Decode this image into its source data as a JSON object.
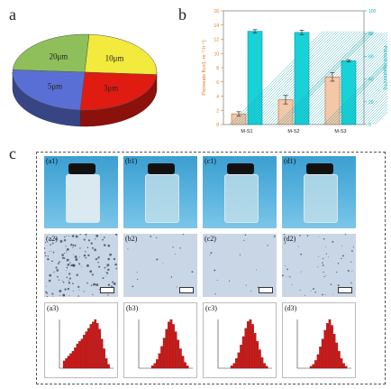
{
  "panels": {
    "a": "a",
    "b": "b",
    "c": "c"
  },
  "colors": {
    "pie_green": "#8fbf5a",
    "pie_yellow": "#f2ea3c",
    "pie_red": "#e01b12",
    "pie_blue": "#5a6fd6",
    "bar_orange": "#f4c7a8",
    "bar_cyan": "#19d2d8",
    "axis_left": "#e07b1c",
    "axis_right": "#16b8c4",
    "hist_red": "#d01818"
  },
  "pie": {
    "slices": [
      {
        "label": "20μm",
        "value": 25,
        "color": "#8fbf5a"
      },
      {
        "label": "10μm",
        "value": 25,
        "color": "#f2ea3c"
      },
      {
        "label": "3μm",
        "value": 25,
        "color": "#e01b12"
      },
      {
        "label": "5μm",
        "value": 25,
        "color": "#5a6fd6"
      }
    ]
  },
  "chart_data": {
    "type": "bar",
    "categories": [
      "M-S1",
      "M-S2",
      "M-S3"
    ],
    "series": [
      {
        "values": [
          1.5,
          3.5,
          6.7
        ],
        "errors": [
          0.3,
          0.6,
          0.6
        ],
        "axis": "left"
      },
      {
        "values": [
          82,
          81,
          56
        ],
        "errors": [
          1.5,
          2,
          1
        ],
        "axis": "right"
      }
    ],
    "ylabel_left": "Permeate flux(L·m⁻²·h⁻¹)",
    "ylabel_right": "Particle rejection(%)",
    "ylim_left": [
      0,
      16
    ],
    "ylim_right": [
      0,
      100
    ],
    "yticks_left": [
      "0",
      "2",
      "4",
      "6",
      "8",
      "10",
      "12",
      "14",
      "16"
    ],
    "yticks_right": [
      "0",
      "20",
      "40",
      "60",
      "80",
      "100"
    ]
  },
  "panel_c": {
    "vials": [
      "(a1)",
      "(b1)",
      "(c1)",
      "(d1)"
    ],
    "micros": [
      "(a2)",
      "(b2)",
      "(c2)",
      "(d2)"
    ],
    "hists": [
      "(a3)",
      "(b3)",
      "(c3)",
      "(d3)"
    ],
    "hist_levels": [
      [
        0.15,
        0.2,
        0.25,
        0.3,
        0.35,
        0.42,
        0.5,
        0.55,
        0.6,
        0.68,
        0.75,
        0.82,
        0.9,
        0.95,
        1.0,
        0.92,
        0.8,
        0.6,
        0.4,
        0.2,
        0.08
      ],
      [
        0.05,
        0.1,
        0.18,
        0.3,
        0.45,
        0.62,
        0.8,
        0.95,
        1.0,
        0.9,
        0.75,
        0.58,
        0.4,
        0.25,
        0.12,
        0.05
      ],
      [
        0.05,
        0.1,
        0.2,
        0.32,
        0.48,
        0.65,
        0.82,
        0.96,
        1.0,
        0.9,
        0.72,
        0.55,
        0.38,
        0.22,
        0.1,
        0.04
      ],
      [
        0.04,
        0.08,
        0.16,
        0.28,
        0.44,
        0.6,
        0.78,
        0.92,
        1.0,
        0.88,
        0.7,
        0.52,
        0.35,
        0.2,
        0.1,
        0.04
      ]
    ]
  }
}
